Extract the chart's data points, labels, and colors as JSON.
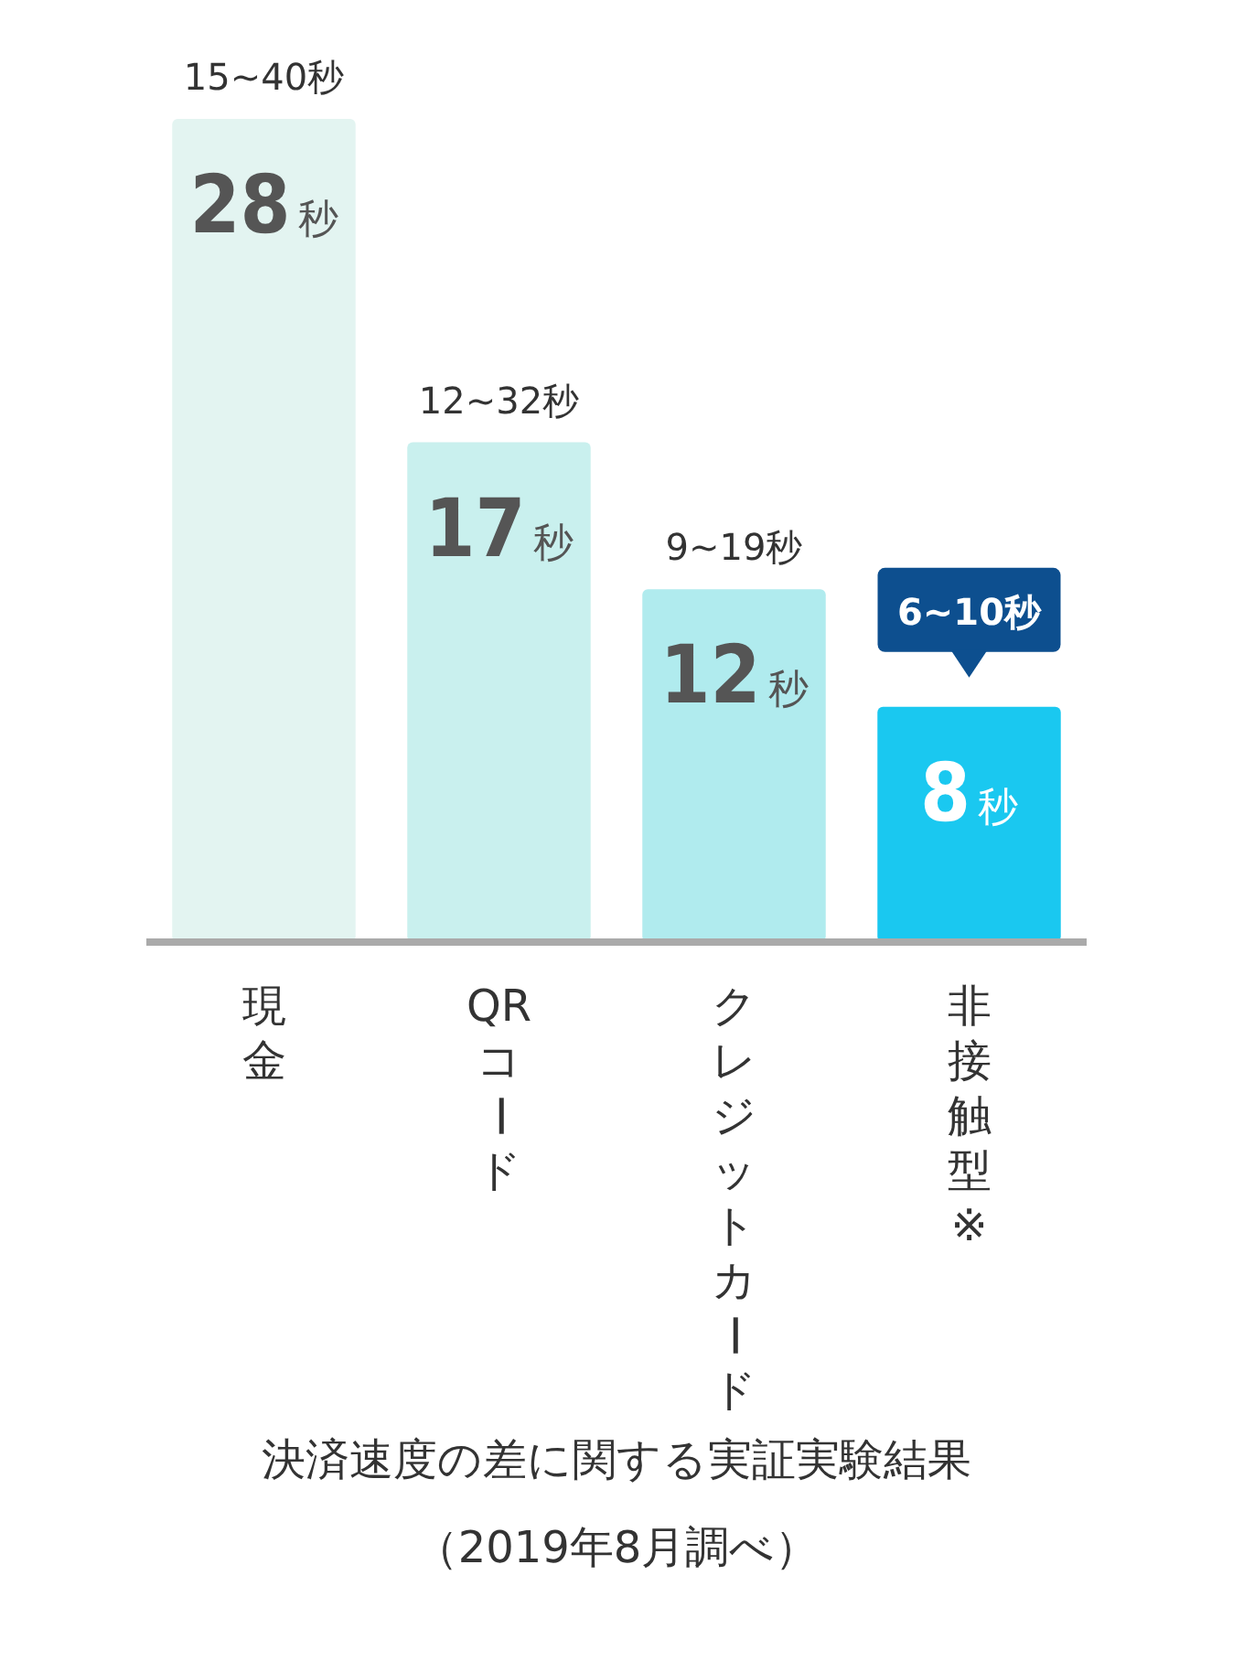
{
  "chart_data": {
    "type": "bar",
    "title": "決済速度の差に関する実証実験結果",
    "categories": [
      "現金",
      "QRコード",
      "クレジットカード",
      "非接触型※"
    ],
    "values": [
      28,
      17,
      12,
      8
    ],
    "colors": [
      "#e3f4f1",
      "#c9f0ee",
      "#b0ebee",
      "#1ac8f0"
    ],
    "value_labels": [
      "28秒",
      "17秒",
      "12秒",
      "8秒"
    ],
    "annotations": [
      {
        "text": "15~40秒",
        "x": "現金",
        "y": 28
      },
      {
        "text": "12~32秒",
        "x": "QRコード",
        "y": 17
      },
      {
        "text": "9~19秒",
        "x": "クレジットカード",
        "y": 12
      },
      {
        "text": "6~10秒",
        "x": "非接触型※",
        "y": 8
      },
      "（2019年8月調べ）"
    ],
    "legend": false
  }
}
